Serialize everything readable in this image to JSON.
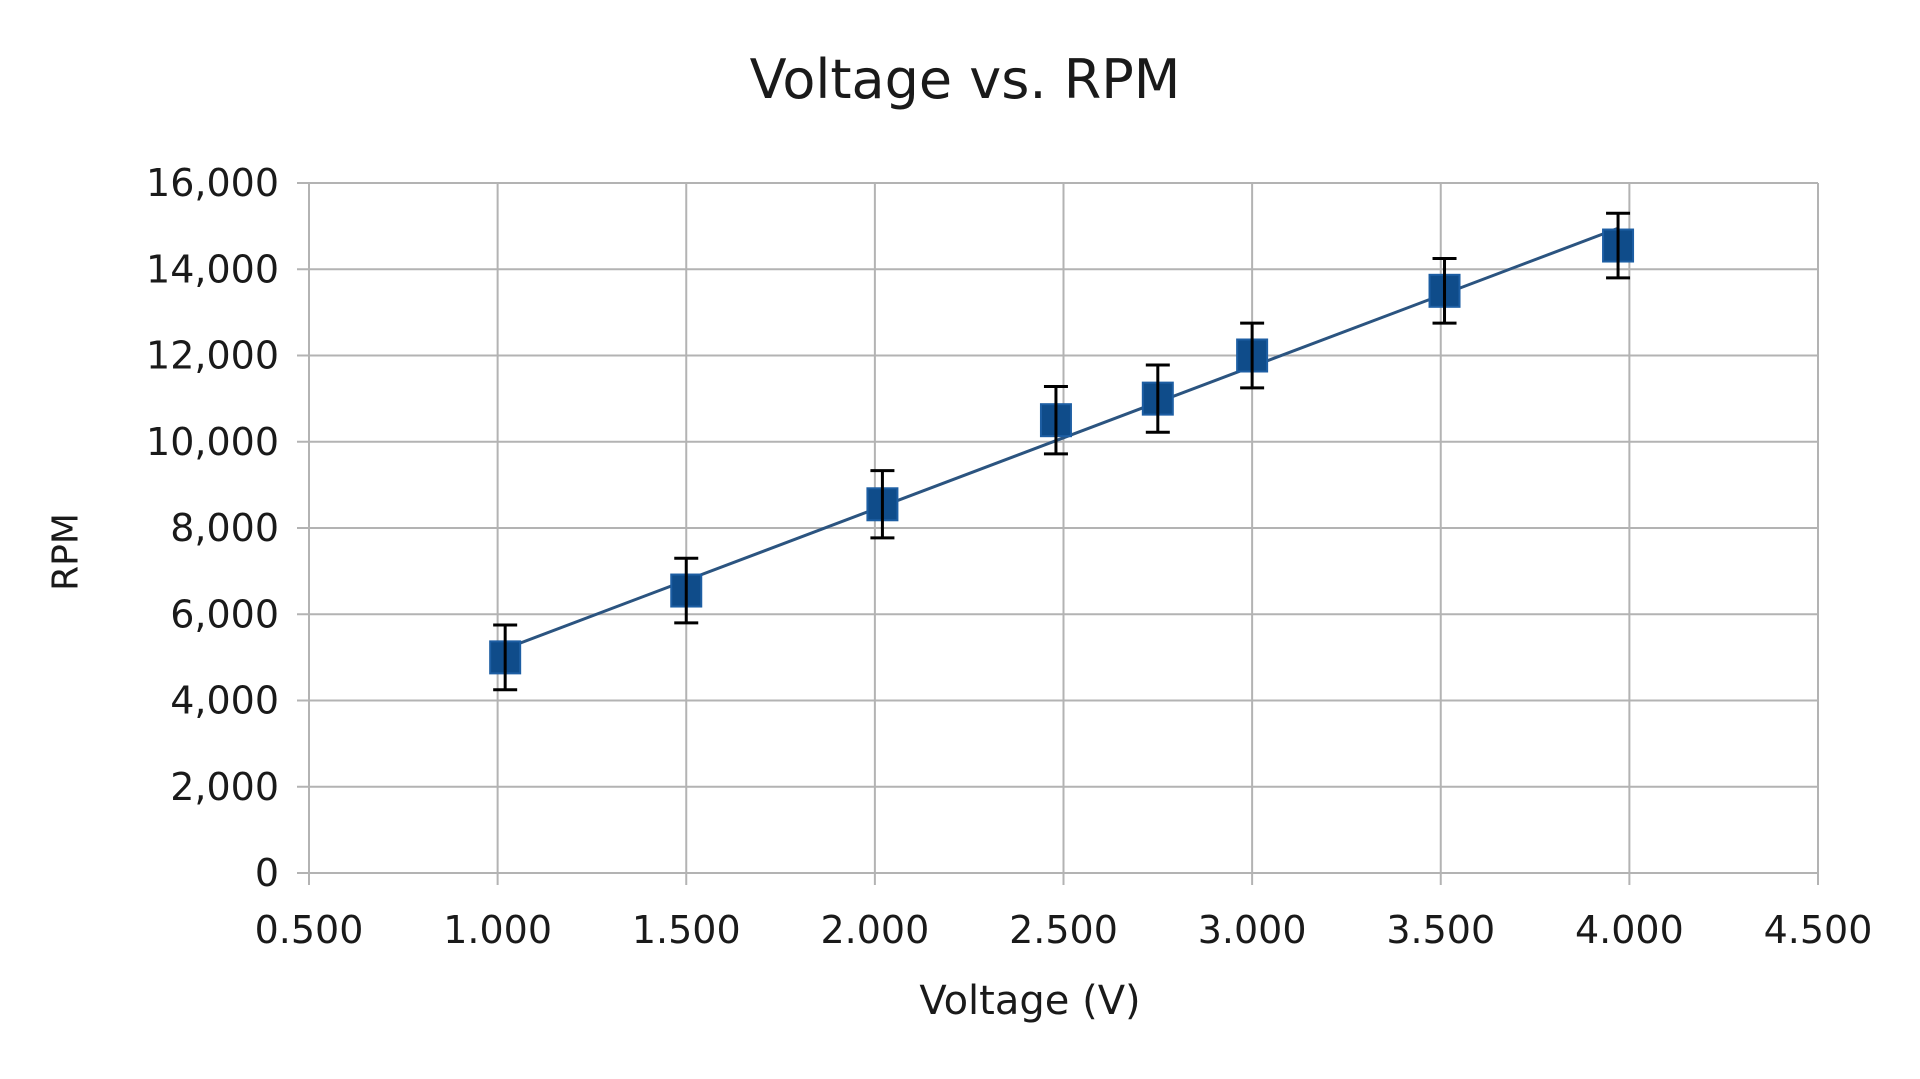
{
  "chart_data": {
    "type": "scatter",
    "title": "Voltage vs. RPM",
    "xlabel": "Voltage (V)",
    "ylabel": "RPM",
    "xlim": [
      0.5,
      4.5
    ],
    "ylim": [
      0,
      16000
    ],
    "x_ticks": [
      "0.500",
      "1.000",
      "1.500",
      "2.000",
      "2.500",
      "3.000",
      "3.500",
      "4.000",
      "4.500"
    ],
    "y_ticks": [
      "0",
      "2,000",
      "4,000",
      "6,000",
      "8,000",
      "10,000",
      "12,000",
      "14,000",
      "16,000"
    ],
    "grid": true,
    "legend": null,
    "series": [
      {
        "name": "RPM",
        "marker": "square",
        "color": "#0f4c8a",
        "x": [
          1.02,
          1.5,
          2.02,
          2.48,
          2.75,
          3.0,
          3.51,
          3.97
        ],
        "y": [
          5000,
          6550,
          8550,
          10500,
          11000,
          12000,
          13500,
          14550
        ],
        "error": [
          750,
          750,
          780,
          780,
          780,
          750,
          750,
          750
        ]
      }
    ],
    "trendline": {
      "type": "linear",
      "color": "#2b5480",
      "x": [
        1.02,
        3.97
      ],
      "y": [
        5200,
        14950
      ]
    }
  },
  "colors": {
    "marker": "#0f4c8a",
    "line": "#2b5480",
    "grid": "#b3b3b3",
    "errorbar": "#000000"
  }
}
